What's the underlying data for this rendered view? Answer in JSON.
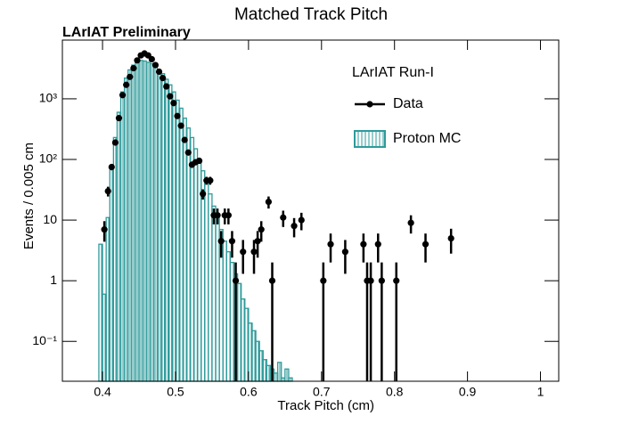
{
  "chart_data": {
    "type": "histogram",
    "title": "Matched Track Pitch",
    "subtitle": "LArIAT Preliminary",
    "x_label": "Track Pitch (cm)",
    "y_label": "Events / 0.005 cm",
    "legend_title": "LArIAT Run-I",
    "log_y": true,
    "xlim": [
      0.345,
      1.025
    ],
    "ylim": [
      0.022,
      9300
    ],
    "xticks": [
      0.4,
      0.5,
      0.6,
      0.7,
      0.8,
      0.9,
      1
    ],
    "yticks": [
      {
        "value": 0.1,
        "label": "10⁻¹"
      },
      1,
      10,
      {
        "value": 100,
        "label": "10²"
      },
      {
        "value": 1000,
        "label": "10³"
      }
    ],
    "series": [
      {
        "name": "Data",
        "type": "points",
        "color": "#000000",
        "x": [
          0.4025,
          0.4075,
          0.4125,
          0.4175,
          0.4225,
          0.4275,
          0.4325,
          0.4375,
          0.4425,
          0.4475,
          0.4525,
          0.4575,
          0.4625,
          0.4675,
          0.4725,
          0.4775,
          0.4825,
          0.4875,
          0.4925,
          0.4975,
          0.5025,
          0.5075,
          0.5125,
          0.5175,
          0.5225,
          0.5275,
          0.5325,
          0.5375,
          0.5425,
          0.5475,
          0.5525,
          0.5575,
          0.5625,
          0.5675,
          0.5725,
          0.5775,
          0.5825,
          0.5925,
          0.6075,
          0.6125,
          0.6175,
          0.6275,
          0.6325,
          0.6475,
          0.6625,
          0.6725,
          0.7025,
          0.7125,
          0.7325,
          0.7575,
          0.7625,
          0.7675,
          0.7775,
          0.7825,
          0.8025,
          0.8225,
          0.8425,
          0.8775
        ],
        "values": [
          7,
          30,
          75,
          190,
          480,
          1150,
          1700,
          2300,
          3200,
          4300,
          5200,
          5600,
          5200,
          4500,
          3600,
          2800,
          2200,
          1600,
          1100,
          850,
          520,
          360,
          210,
          130,
          82,
          90,
          95,
          27,
          45,
          45,
          12,
          12,
          4.5,
          12,
          12,
          4.5,
          1,
          3,
          3,
          4.5,
          7,
          20,
          1,
          11,
          8,
          10,
          1,
          4,
          3,
          4,
          1,
          1,
          4,
          1,
          1,
          9,
          4,
          5
        ],
        "errors": [
          2.6,
          5.5,
          8.7,
          13.8,
          21.9,
          33.9,
          41.2,
          48,
          56.6,
          65.6,
          72.1,
          74.8,
          72.1,
          67.1,
          60,
          52.9,
          46.9,
          40,
          33.2,
          29.2,
          22.8,
          19,
          14.5,
          11.4,
          9.1,
          9.5,
          9.7,
          5.2,
          6.7,
          6.7,
          3.5,
          3.5,
          2.1,
          3.5,
          3.5,
          2.1,
          1,
          1.7,
          1.7,
          2.1,
          2.6,
          4.5,
          1,
          3.3,
          2.8,
          3.2,
          1,
          2,
          1.7,
          2,
          1,
          1,
          2,
          1,
          1,
          3,
          2,
          2.2
        ]
      },
      {
        "name": "Proton MC",
        "type": "histogram",
        "color": "#2e9a9a",
        "bins": [
          0.395,
          0.4,
          0.405,
          0.41,
          0.415,
          0.42,
          0.425,
          0.43,
          0.435,
          0.44,
          0.445,
          0.45,
          0.455,
          0.46,
          0.465,
          0.47,
          0.475,
          0.48,
          0.485,
          0.49,
          0.495,
          0.5,
          0.505,
          0.51,
          0.515,
          0.52,
          0.525,
          0.53,
          0.535,
          0.54,
          0.545,
          0.55,
          0.555,
          0.56,
          0.565,
          0.57,
          0.575,
          0.58,
          0.585,
          0.59,
          0.595,
          0.6,
          0.605,
          0.61,
          0.615,
          0.62,
          0.625,
          0.63,
          0.635,
          0.64,
          0.645,
          0.65,
          0.655,
          0.66
        ],
        "counts": [
          4,
          0.6,
          11,
          70,
          230,
          600,
          1300,
          2200,
          3000,
          3600,
          4200,
          4300,
          4200,
          4000,
          3800,
          3400,
          3000,
          2600,
          2100,
          1700,
          1300,
          950,
          700,
          480,
          330,
          230,
          150,
          100,
          65,
          40,
          27,
          17,
          11,
          7,
          4.5,
          3,
          2,
          1.3,
          0.9,
          0.5,
          0.35,
          0.2,
          0.15,
          0.1,
          0.07,
          0.05,
          0.04,
          0.035,
          0.03,
          0.045,
          0.025,
          0.035,
          0.025
        ]
      }
    ]
  }
}
